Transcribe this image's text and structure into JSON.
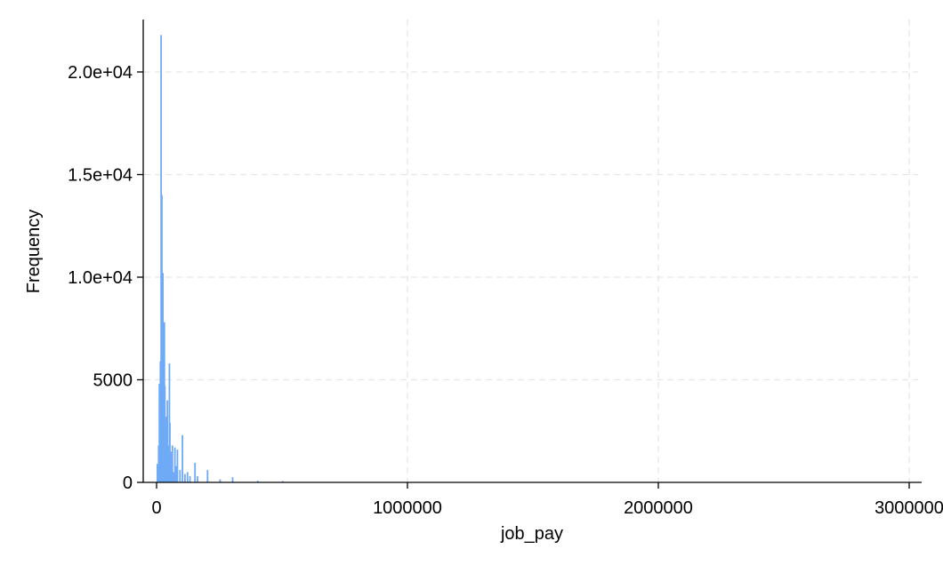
{
  "chart_data": {
    "type": "bar",
    "subtype": "histogram",
    "title": "",
    "xlabel": "job_pay",
    "ylabel": "Frequency",
    "xlim": [
      0,
      3000000
    ],
    "ylim": [
      0,
      22500
    ],
    "grid": true,
    "legend": "none",
    "bar_color": "#6eaaf5",
    "grid_color": "#e6e6e6",
    "x_ticks": [
      {
        "value": 0,
        "label": "0"
      },
      {
        "value": 1000000,
        "label": "1000000"
      },
      {
        "value": 2000000,
        "label": "2000000"
      },
      {
        "value": 3000000,
        "label": "3000000"
      }
    ],
    "y_ticks": [
      {
        "value": 0,
        "label": "0"
      },
      {
        "value": 5000,
        "label": "5000"
      },
      {
        "value": 10000,
        "label": "1.0e+04"
      },
      {
        "value": 15000,
        "label": "1.5e+04"
      },
      {
        "value": 20000,
        "label": "2.0e+04"
      }
    ],
    "x": [
      0,
      5000,
      8000,
      12000,
      15000,
      18000,
      20000,
      22000,
      25000,
      28000,
      30000,
      33000,
      35000,
      38000,
      40000,
      42000,
      45000,
      48000,
      50000,
      55000,
      60000,
      65000,
      70000,
      75000,
      80000,
      90000,
      100000,
      110000,
      120000,
      130000,
      150000,
      160000,
      200000,
      250000,
      300000,
      400000,
      500000
    ],
    "values": [
      900,
      1800,
      4800,
      5900,
      21800,
      14000,
      7900,
      10200,
      3600,
      7800,
      4700,
      2900,
      3200,
      1700,
      4000,
      1800,
      1200,
      5800,
      2900,
      1500,
      1800,
      500,
      1700,
      800,
      1600,
      600,
      2300,
      400,
      500,
      300,
      950,
      300,
      600,
      150,
      250,
      80,
      60
    ]
  }
}
